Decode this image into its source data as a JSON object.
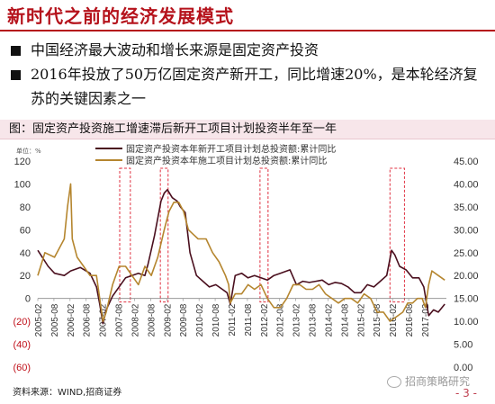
{
  "slide": {
    "title": "新时代之前的经济发展模式",
    "bullets": [
      "中国经济最大波动和增长来源是固定资产投资",
      "2016年投放了50万亿固定资产新开工，同比增速20%，是本轮经济复苏的关键因素之一"
    ],
    "source": "资料来源：WIND,招商证券",
    "brand": "招商策略研究",
    "page_number": "- 3 -"
  },
  "chart_data": {
    "type": "line",
    "title": "图：固定资产投资施工增速滞后新开工项目计划投资半年至一年",
    "left_unit": "单位：%",
    "series": [
      {
        "name": "固定资产投资本年新开工项目计划总投资额:累计同比",
        "axis": "left",
        "color": "#4a0f1e",
        "x": [
          2005.08,
          2005.4,
          2005.6,
          2005.9,
          2006.1,
          2006.4,
          2006.7,
          2006.9,
          2007.0,
          2007.1,
          2007.2,
          2007.4,
          2007.6,
          2007.8,
          2008.0,
          2008.2,
          2008.4,
          2008.5,
          2008.7,
          2008.9,
          2009.0,
          2009.1,
          2009.25,
          2009.4,
          2009.5,
          2009.65,
          2009.8,
          2010.0,
          2010.2,
          2010.4,
          2010.6,
          2010.8,
          2010.95,
          2011.05,
          2011.2,
          2011.4,
          2011.6,
          2011.8,
          2012.0,
          2012.2,
          2012.4,
          2012.6,
          2012.9,
          2013.1,
          2013.3,
          2013.5,
          2013.7,
          2013.9,
          2014.1,
          2014.3,
          2014.5,
          2014.7,
          2014.9,
          2015.1,
          2015.3,
          2015.5,
          2015.7,
          2015.9,
          2016.05,
          2016.15,
          2016.3,
          2016.5,
          2016.7,
          2016.9,
          2017.05,
          2017.2,
          2017.35,
          2017.5,
          2017.7
        ],
        "y": [
          42,
          28,
          22,
          20,
          24,
          27,
          22,
          10,
          -5,
          -22,
          -10,
          2,
          10,
          18,
          20,
          22,
          20,
          30,
          55,
          85,
          92,
          95,
          88,
          85,
          80,
          75,
          40,
          20,
          15,
          10,
          12,
          8,
          5,
          -5,
          20,
          22,
          18,
          20,
          18,
          16,
          20,
          22,
          25,
          12,
          15,
          14,
          15,
          16,
          12,
          14,
          13,
          10,
          5,
          5,
          12,
          10,
          15,
          20,
          42,
          38,
          28,
          25,
          18,
          18,
          10,
          -15,
          -10,
          -12,
          -5
        ]
      },
      {
        "name": "固定资产投资本年施工项目计划总投资额:累计同比",
        "axis": "right",
        "color": "#b5862f",
        "x": [
          2005.08,
          2005.3,
          2005.6,
          2005.9,
          2006.0,
          2006.1,
          2006.15,
          2006.3,
          2006.5,
          2006.7,
          2006.9,
          2007.0,
          2007.1,
          2007.2,
          2007.4,
          2007.6,
          2007.8,
          2008.0,
          2008.2,
          2008.4,
          2008.6,
          2008.8,
          2009.0,
          2009.15,
          2009.3,
          2009.45,
          2009.6,
          2009.75,
          2009.9,
          2010.05,
          2010.3,
          2010.5,
          2010.7,
          2010.9,
          2011.0,
          2011.05,
          2011.2,
          2011.4,
          2011.6,
          2011.8,
          2012.0,
          2012.2,
          2012.4,
          2012.6,
          2012.8,
          2013.0,
          2013.2,
          2013.4,
          2013.6,
          2013.8,
          2014.0,
          2014.2,
          2014.4,
          2014.6,
          2014.8,
          2015.0,
          2015.2,
          2015.4,
          2015.6,
          2015.8,
          2016.0,
          2016.2,
          2016.4,
          2016.55,
          2016.7,
          2016.85,
          2017.0,
          2017.1,
          2017.2,
          2017.3,
          2017.5,
          2017.7
        ],
        "y": [
          20,
          25,
          24,
          28,
          35,
          40,
          28,
          24,
          22,
          20,
          20,
          15,
          10,
          12,
          18,
          22,
          22,
          20,
          18,
          22,
          20,
          24,
          30,
          34,
          36,
          36,
          34,
          30,
          29,
          28,
          28,
          25,
          23,
          20,
          18,
          14,
          16,
          16,
          18,
          17,
          18,
          15,
          13,
          13,
          15,
          18,
          18,
          17,
          17,
          18,
          16,
          15,
          14,
          15,
          15,
          14,
          16,
          15,
          12,
          12,
          10,
          11,
          12,
          14,
          14,
          15,
          15,
          13,
          18,
          21,
          20,
          19
        ]
      }
    ],
    "x_labels": [
      "2005-02",
      "2005-08",
      "2006-02",
      "2006-08",
      "2007-02",
      "2007-08",
      "2008-02",
      "2008-08",
      "2009-02",
      "2009-08",
      "2010-02",
      "2010-08",
      "2011-02",
      "2011-08",
      "2012-02",
      "2012-08",
      "2013-02",
      "2013-08",
      "2014-02",
      "2014-08",
      "2015-02",
      "2015-08",
      "2016-02",
      "2016-08",
      "2017-02"
    ],
    "x_range": [
      2005.08,
      2017.75
    ],
    "y_left": {
      "range": [
        -60,
        120
      ],
      "ticks": [
        "(60)",
        "(40)",
        "(20)",
        "0",
        "20",
        "40",
        "60",
        "80",
        "100",
        "120"
      ]
    },
    "y_right": {
      "range": [
        0,
        45
      ],
      "ticks": [
        "0.00",
        "5.00",
        "10.00",
        "15.00",
        "20.00",
        "25.00",
        "30.00",
        "35.00",
        "40.00",
        "45.00"
      ]
    },
    "highlight_ranges": [
      [
        2007.62,
        2007.95
      ],
      [
        2008.88,
        2009.12
      ],
      [
        2011.97,
        2012.22
      ],
      [
        2016.0,
        2016.45
      ]
    ],
    "grid": false,
    "legend": "top"
  }
}
